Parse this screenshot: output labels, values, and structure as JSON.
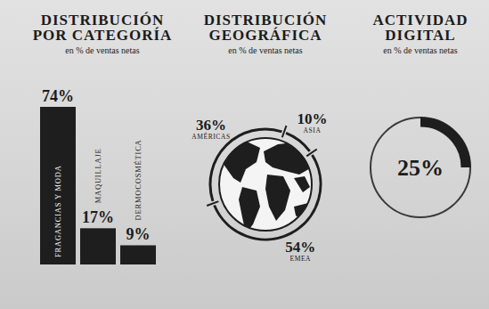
{
  "chart_data": [
    {
      "type": "bar",
      "title": "DISTRIBUCIÓN POR CATEGORÍA",
      "subtitle": "en % de ventas netas",
      "categories": [
        "FRAGANCIAS Y MODA",
        "MAQUILLAJE",
        "DERMOCOSMÉTICA"
      ],
      "values": [
        74,
        17,
        9
      ],
      "value_labels": [
        "74%",
        "17%",
        "9%"
      ],
      "color": "#1e1e1e",
      "data_labels": true,
      "tick_labels": false
    },
    {
      "type": "pie",
      "title": "DISTRIBUCIÓN GEOGRÁFICA",
      "subtitle": "en % de ventas netas",
      "categories": [
        "AMÉRICAS",
        "ASIA",
        "EMEA"
      ],
      "values": [
        36,
        10,
        54
      ],
      "value_labels": [
        "36%",
        "10%",
        "54%"
      ],
      "color": "#1e1e1e",
      "data_labels": true
    },
    {
      "type": "donut",
      "title": "ACTIVIDAD DIGITAL",
      "subtitle": "en % de ventas netas",
      "values": [
        25
      ],
      "value_labels": [
        "25%"
      ],
      "ylim": [
        0,
        100
      ],
      "color": "#1e1e1e",
      "data_labels": true
    }
  ]
}
